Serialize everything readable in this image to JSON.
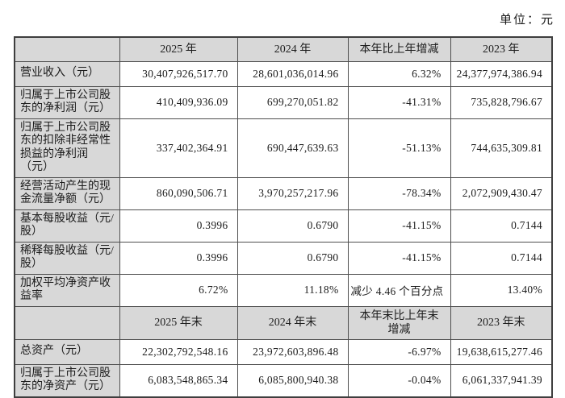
{
  "unit_label": "单位：元",
  "colors": {
    "header_bg": "#d8d8d8",
    "border": "#4e4e4e",
    "text": "#1c1c1c"
  },
  "table": {
    "sections": [
      {
        "headers": [
          "",
          "2025 年",
          "2024 年",
          "本年比上年增减",
          "2023 年"
        ],
        "rows": [
          {
            "label": "营业收入（元）",
            "values": [
              "30,407,926,517.70",
              "28,601,036,014.96",
              "6.32%",
              "24,377,974,386.94"
            ]
          },
          {
            "label": "归属于上市公司股东的净利润（元）",
            "values": [
              "410,409,936.09",
              "699,270,051.82",
              "-41.31%",
              "735,828,796.67"
            ]
          },
          {
            "label": "归属于上市公司股东的扣除非经常性损益的净利润（元）",
            "values": [
              "337,402,364.91",
              "690,447,639.63",
              "-51.13%",
              "744,635,309.81"
            ]
          },
          {
            "label": "经营活动产生的现金流量净额（元）",
            "values": [
              "860,090,506.71",
              "3,970,257,217.96",
              "-78.34%",
              "2,072,909,430.47"
            ]
          },
          {
            "label": "基本每股收益（元/股）",
            "values": [
              "0.3996",
              "0.6790",
              "-41.15%",
              "0.7144"
            ]
          },
          {
            "label": "稀释每股收益（元/股）",
            "values": [
              "0.3996",
              "0.6790",
              "-41.15%",
              "0.7144"
            ]
          },
          {
            "label": "加权平均净资产收益率",
            "values": [
              "6.72%",
              "11.18%",
              "减少 4.46 个百分点",
              "13.40%"
            ]
          }
        ]
      },
      {
        "headers": [
          "",
          "2025 年末",
          "2024 年末",
          "本年末比上年末增减",
          "2023 年末"
        ],
        "rows": [
          {
            "label": "总资产（元）",
            "values": [
              "22,302,792,548.16",
              "23,972,603,896.48",
              "-6.97%",
              "19,638,615,277.46"
            ]
          },
          {
            "label": "归属于上市公司股东的净资产（元）",
            "values": [
              "6,083,548,865.34",
              "6,085,800,940.38",
              "-0.04%",
              "6,061,337,941.39"
            ]
          }
        ]
      }
    ]
  }
}
